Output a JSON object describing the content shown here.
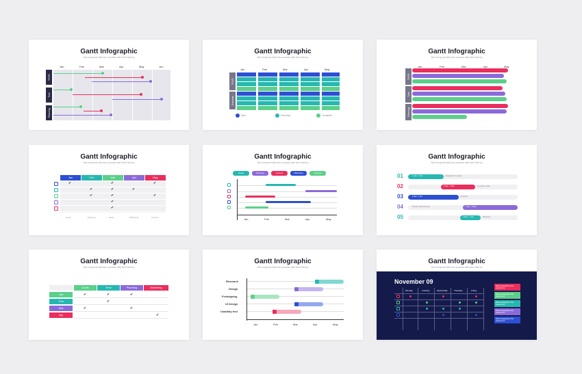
{
  "colors": {
    "green": "#5ccf8a",
    "red": "#ea2e5d",
    "purple": "#8b6ad9",
    "blue": "#2d4fd4",
    "teal": "#26b8b0",
    "navy": "#2a2a44",
    "dark_bg": "#141a4a"
  },
  "slides": [
    {
      "title": "Gantt Infographic",
      "subtitle": "Not everyone falls into success with their first try",
      "months": [
        "Jan",
        "Feb",
        "Mar",
        "Apr",
        "May",
        "Jun"
      ],
      "groups": [
        "Goals",
        "Time",
        "Planning"
      ]
    },
    {
      "title": "Gantt Infographic",
      "subtitle": "Not everyone falls into success with their first try",
      "months": [
        "Jan",
        "Feb",
        "Mar",
        "Apr",
        "May"
      ],
      "groups": [
        "Goals",
        "Estimate"
      ],
      "legend": [
        "Idea",
        "Planning",
        "Complete"
      ]
    },
    {
      "title": "Gantt Infographic",
      "subtitle": "Not everyone falls into success with their first try",
      "months": [
        "Jan",
        "Feb",
        "Mar",
        "Apr",
        "May"
      ],
      "groups": [
        "Goals",
        "Time",
        "Planning"
      ]
    },
    {
      "title": "Gantt Infographic",
      "subtitle": "Not everyone falls into success with their first try",
      "months": [
        "Jan",
        "Feb",
        "Mar",
        "Apr",
        "May"
      ],
      "legend": [
        "Goals",
        "Planning",
        "Ideas",
        "Marketing",
        "Content"
      ]
    },
    {
      "title": "Gantt Infographic",
      "subtitle": "Not everyone falls into success with their first try",
      "tags": [
        "Goals",
        "Planning",
        "Content",
        "Marketing",
        "Finance"
      ],
      "months": [
        "Jan",
        "Feb",
        "Mar",
        "Apr",
        "May"
      ]
    },
    {
      "title": "Gantt Infographic",
      "subtitle": "Not everyone falls into success with their first try",
      "numbers": [
        "01",
        "02",
        "03",
        "04",
        "05"
      ],
      "tasks": [
        "Goals",
        "Planning",
        "Ideas",
        "Marketing",
        "Content"
      ],
      "ranges": [
        "1 Jan - 1 Feb",
        "1 Feb - 1 Mar",
        "1 Mar - 1 Apr",
        "1 Apr - 1 May",
        "1 May - 1 Jun"
      ],
      "notes": [
        "Infographic campaign",
        "Complete Goals",
        "Complete",
        "Social media planning",
        "Marketing"
      ]
    },
    {
      "title": "Gantt Infographic",
      "subtitle": "Not everyone falls into success with their first try",
      "columns": [
        "Goals",
        "Time",
        "Planning",
        "Marketing"
      ],
      "rows": [
        "Jan",
        "Feb",
        "Mar",
        "Apr"
      ]
    },
    {
      "title": "Gantt Infographic",
      "subtitle": "Not everyone falls into success with their first try",
      "tasks": [
        "Research",
        "Design",
        "Prototyping",
        "UI Design",
        "Usability test"
      ],
      "months": [
        "Jan",
        "Feb",
        "Mar",
        "Apr",
        "May"
      ]
    },
    {
      "title": "Gantt Infographic",
      "subtitle": "Not everyone falls into success with their first try",
      "date": "November 09",
      "days": [
        "Monday",
        "Tuesday",
        "Wednesday",
        "Thursday",
        "Friday"
      ],
      "notes": [
        "Make infographics that people love",
        "Make infographics that people love",
        "Make infographics that people love",
        "Make infographics that people love",
        "Make infographics that people love"
      ]
    }
  ]
}
